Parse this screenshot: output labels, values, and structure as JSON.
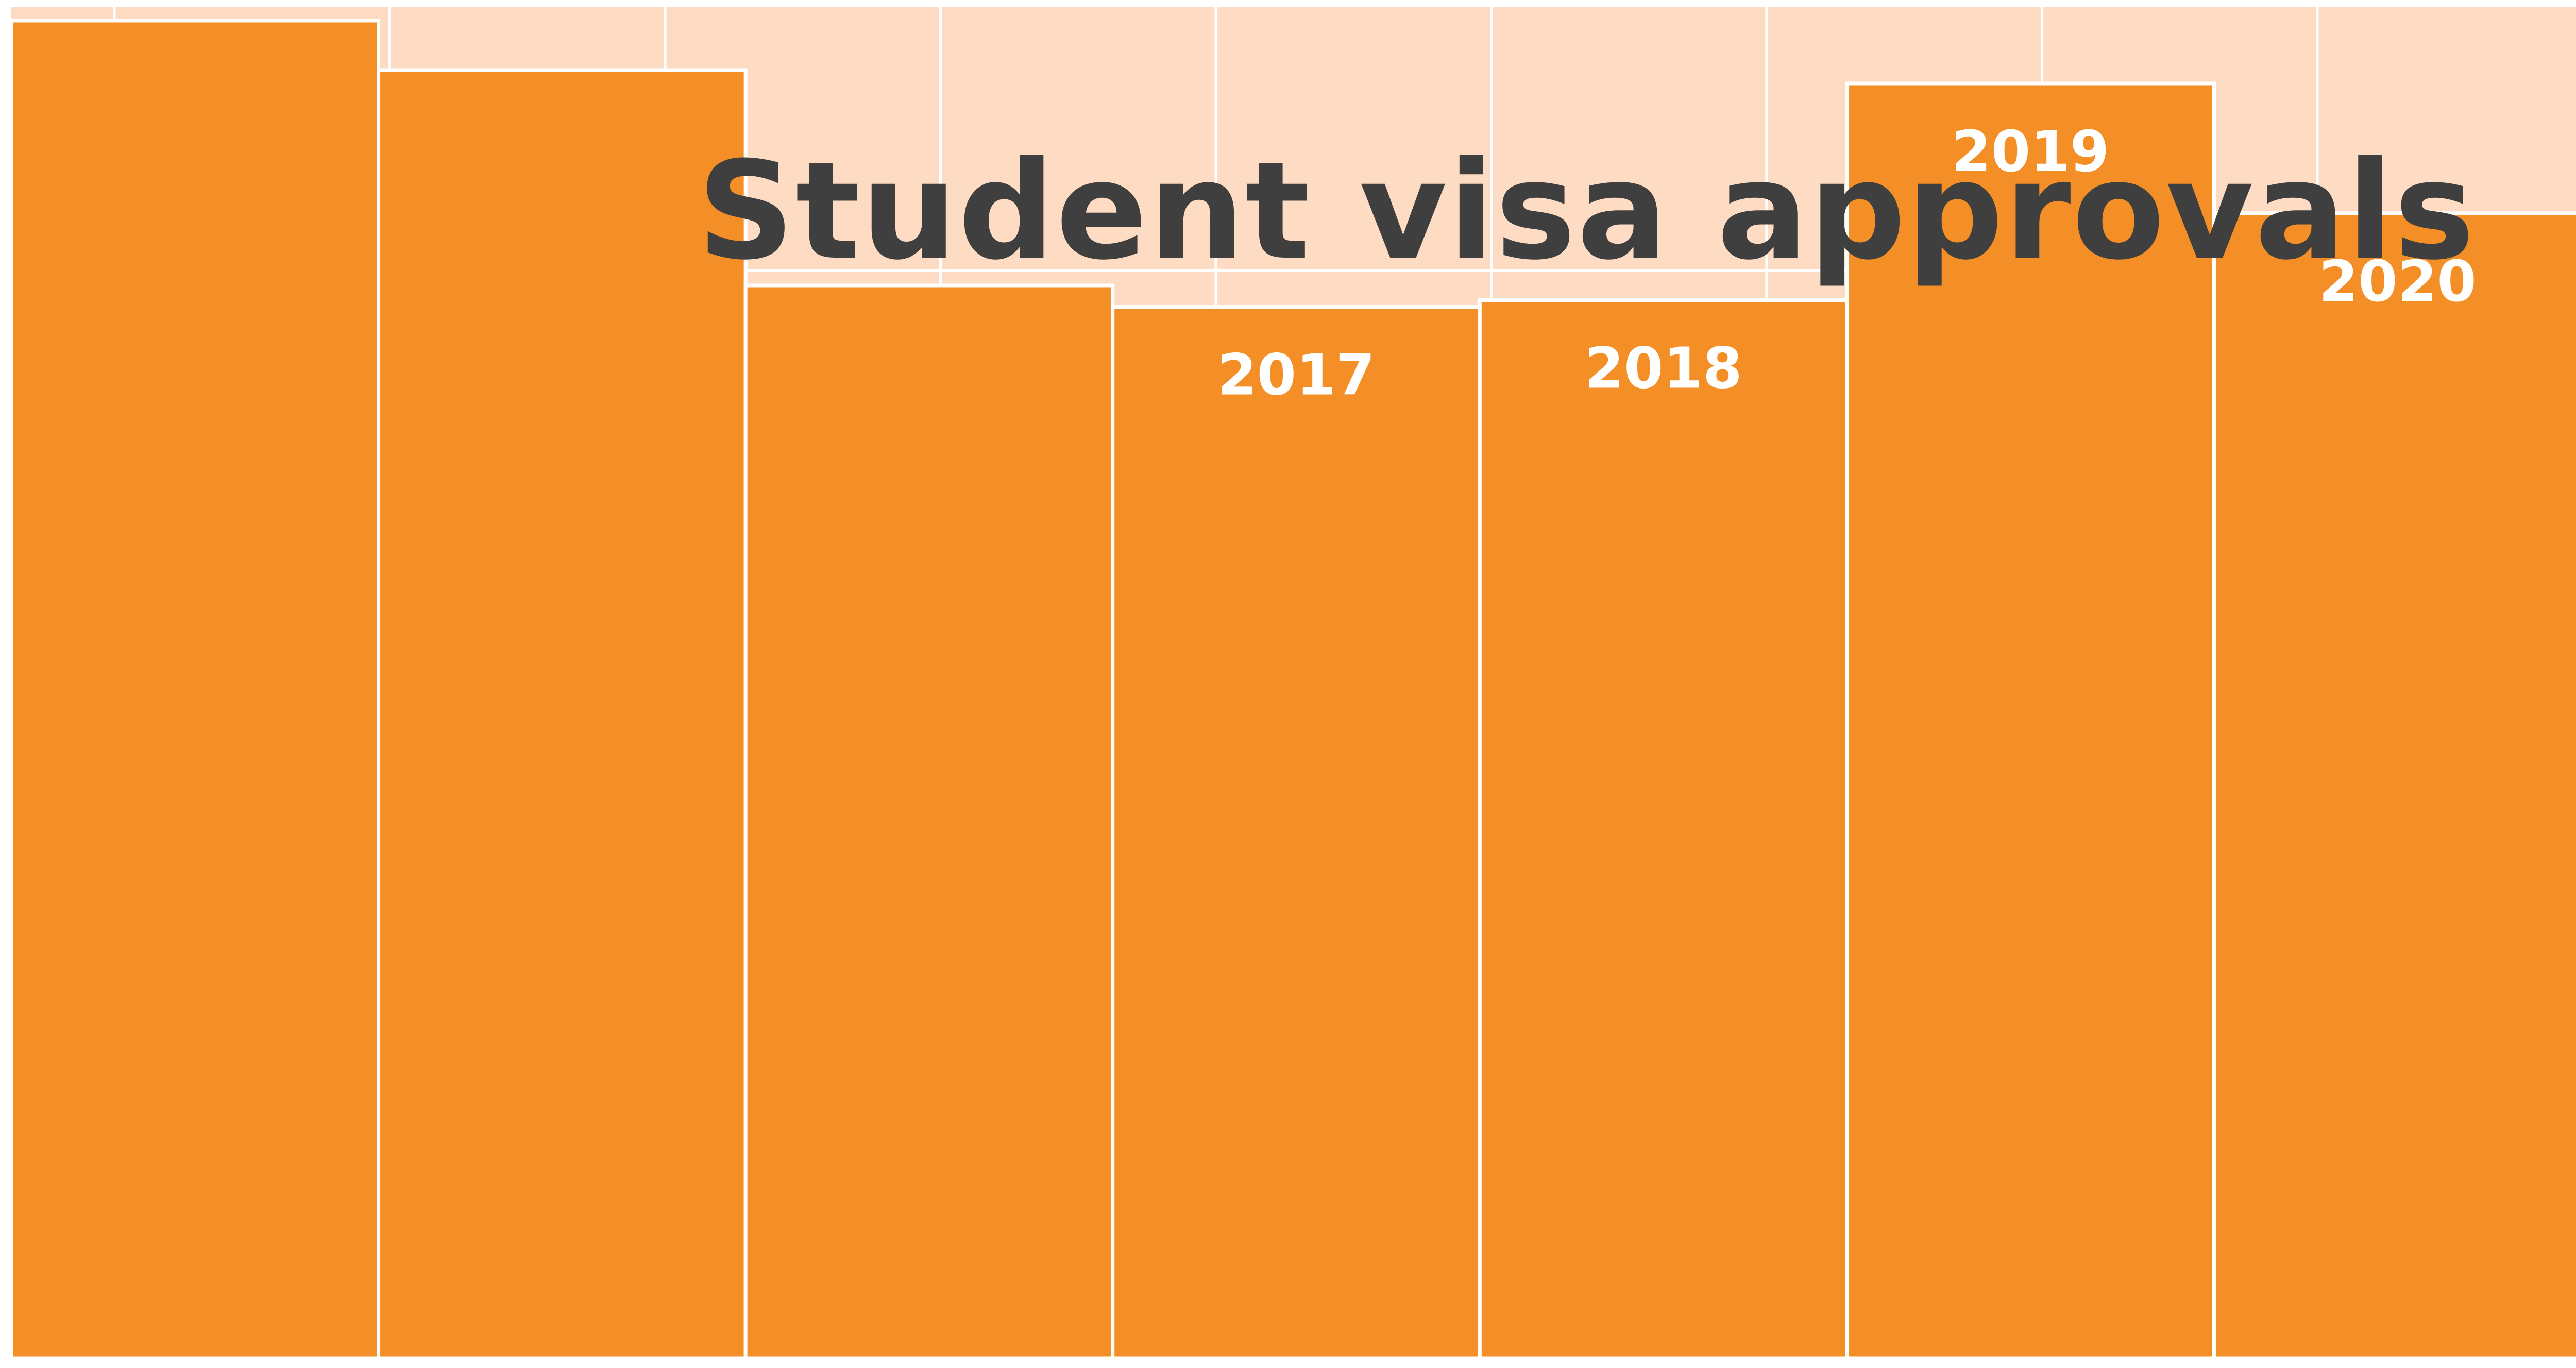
{
  "colors": {
    "plot_background": "#FEDCC3",
    "bar": "#F38F26",
    "bar_outline": "#FFFFFF",
    "gridline": "#FFFFFF",
    "title": "#3F3F3F",
    "label": "#FFFFFF"
  },
  "chart_data": {
    "type": "bar",
    "title": "Student visa approvals",
    "categories": [
      "",
      "",
      "",
      "2017",
      "2018",
      "2019",
      "2020"
    ],
    "values": [
      100,
      96.3,
      80.2,
      78.6,
      79.1,
      95.3,
      85.6
    ],
    "value_axis_printed": false,
    "ylim": [
      0,
      101
    ],
    "grid": true,
    "legend": "none"
  }
}
